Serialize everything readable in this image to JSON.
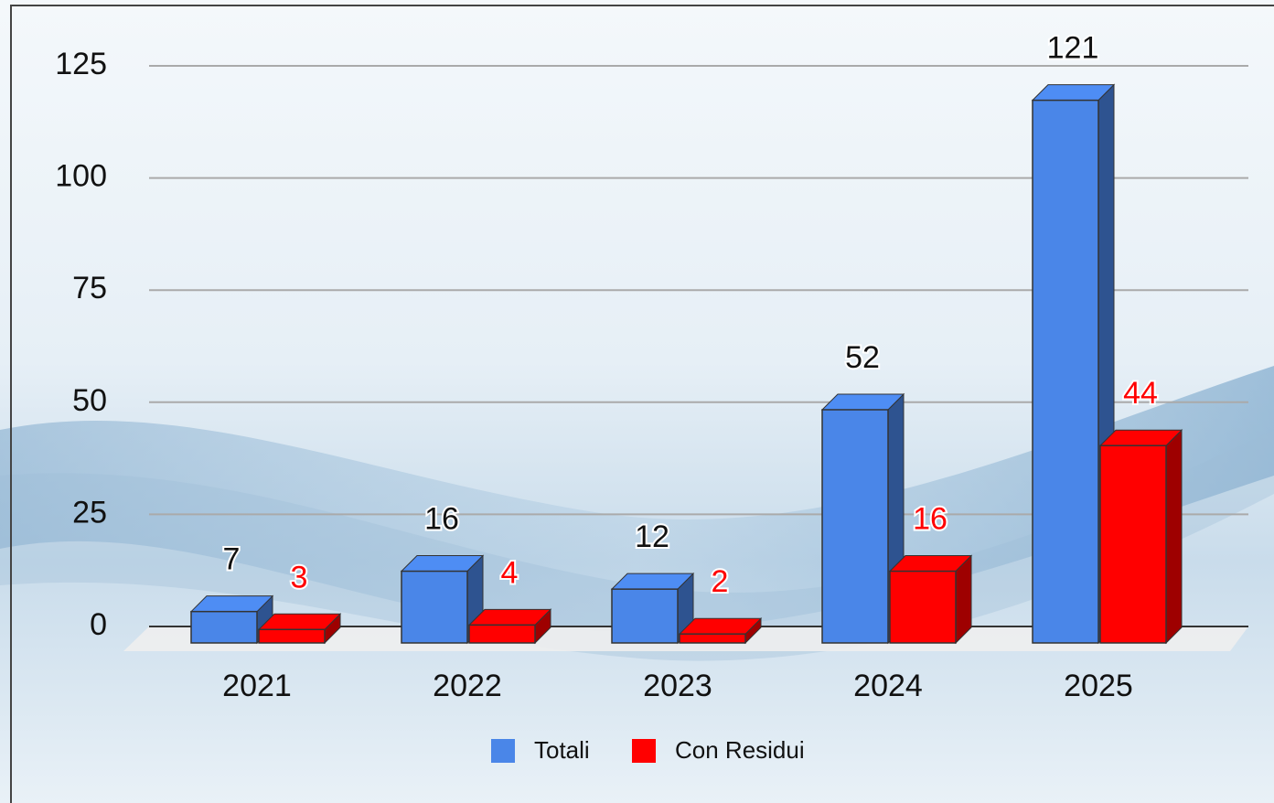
{
  "chart_data": {
    "type": "bar3d",
    "categories": [
      "2021",
      "2022",
      "2023",
      "2024",
      "2025"
    ],
    "series": [
      {
        "name": "Totali",
        "color": "#4a86e8",
        "values": [
          7,
          16,
          12,
          52,
          121
        ]
      },
      {
        "name": "Con Residui",
        "color": "#ff0000",
        "values": [
          3,
          4,
          2,
          16,
          44
        ]
      }
    ],
    "ylim": [
      0,
      125
    ],
    "yticks": [
      0,
      25,
      50,
      75,
      100,
      125
    ],
    "grid": true,
    "legend": "bottom"
  }
}
